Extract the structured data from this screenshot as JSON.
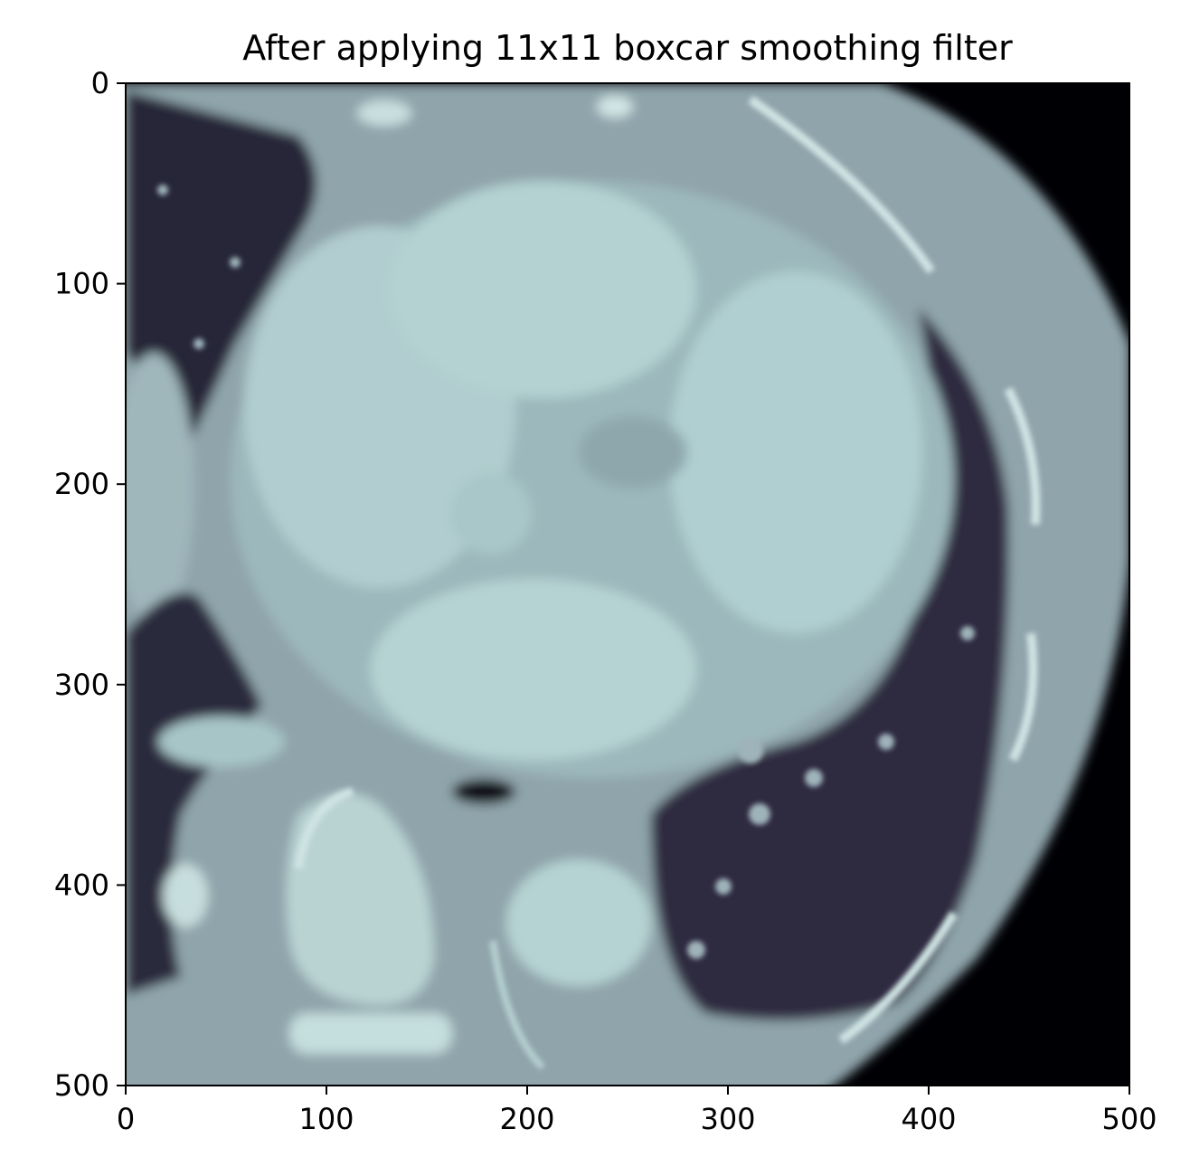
{
  "chart_data": {
    "type": "heatmap",
    "title": "After applying 11x11 boxcar smoothing filter",
    "xlabel": "",
    "ylabel": "",
    "xlim": [
      0,
      500
    ],
    "ylim": [
      500,
      0
    ],
    "x_ticks": [
      "0",
      "100",
      "200",
      "300",
      "400",
      "500"
    ],
    "y_ticks": [
      "0",
      "100",
      "200",
      "300",
      "400",
      "500"
    ],
    "x_tick_values": [
      0,
      100,
      200,
      300,
      400,
      500
    ],
    "y_tick_values": [
      0,
      100,
      200,
      300,
      400,
      500
    ],
    "colormap": "bone",
    "grid": false,
    "content": "smoothed axial CT slice of the chest"
  },
  "colors": {
    "background": "#000004",
    "soft_tissue": "#8ea3aa",
    "contrast_blood": "#b4d2d2",
    "bright_vessel": "#c2dcdc",
    "lung": "#2a2a3a",
    "bone": "#dceaea",
    "axis": "#000000"
  }
}
